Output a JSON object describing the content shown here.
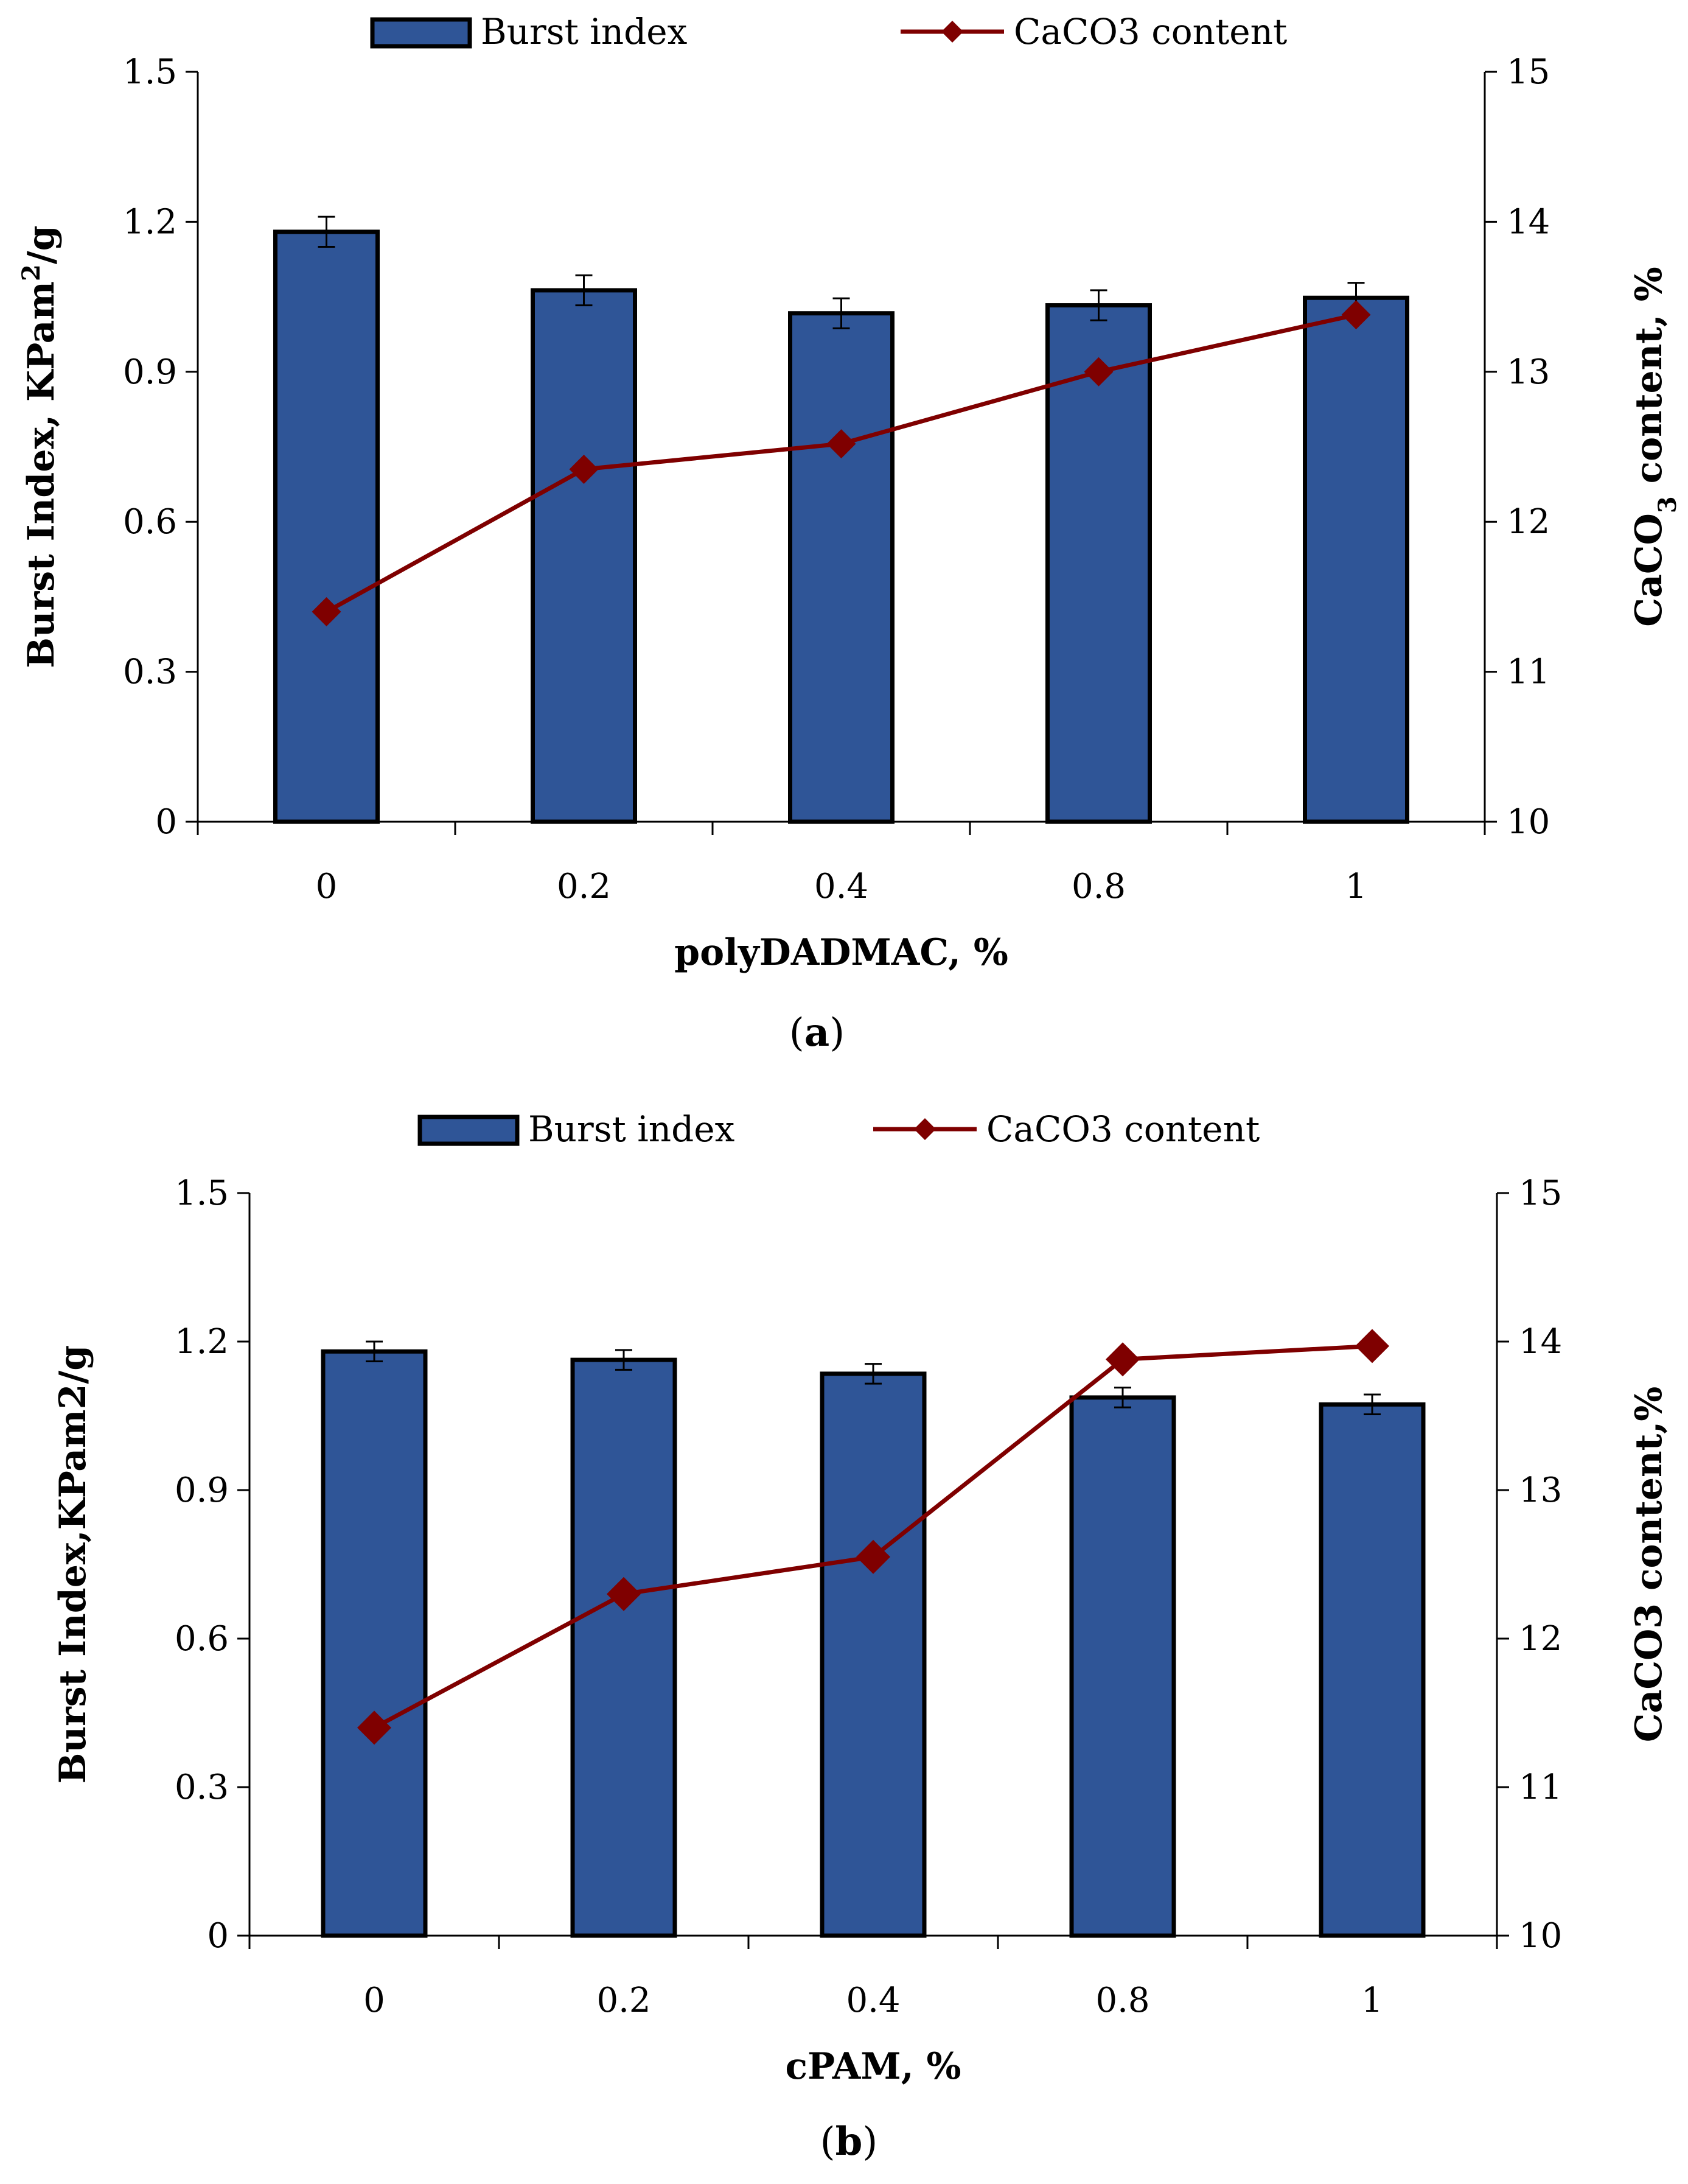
{
  "chart_data": [
    {
      "type": "bar",
      "panel_label": "a",
      "title": "",
      "categories": [
        "0",
        "0.2",
        "0.4",
        "0.8",
        "1"
      ],
      "xlabel": "polyDADMAC, %",
      "ylabel": "Burst Index, KPam²/g",
      "ylabel_parts": {
        "main": "Burst Index, KPam",
        "sup": "2",
        "tail": "/g"
      },
      "y2label": "CaCO₃ content, %",
      "y2label_parts": {
        "main": "CaCO",
        "sub": "3",
        "tail": " content, %"
      },
      "ylim": [
        0,
        1.5
      ],
      "yticks": [
        "0",
        "0.3",
        "0.6",
        "0.9",
        "1.2",
        "1.5"
      ],
      "y2lim": [
        10,
        15
      ],
      "y2ticks": [
        "10",
        "11",
        "12",
        "13",
        "14",
        "15"
      ],
      "grid": false,
      "legend_position": "top",
      "series": [
        {
          "name": "Burst index",
          "type": "bar",
          "axis": "left",
          "color": "#2F5597",
          "values": [
            1.18,
            1.063,
            1.017,
            1.033,
            1.048
          ],
          "errors": [
            0.03,
            0.03,
            0.03,
            0.03,
            0.03
          ]
        },
        {
          "name": "CaCO3 content",
          "type": "line",
          "axis": "right",
          "color": "#7F0000",
          "marker": "diamond",
          "values": [
            11.4,
            12.35,
            12.52,
            13.0,
            13.38
          ]
        }
      ]
    },
    {
      "type": "bar",
      "panel_label": "b",
      "title": "",
      "categories": [
        "0",
        "0.2",
        "0.4",
        "0.8",
        "1"
      ],
      "xlabel": "cPAM, %",
      "ylabel": "Burst Index,KPam2/g",
      "ylabel_parts": {
        "main": "Burst Index,KPam2/g",
        "sup": "",
        "tail": ""
      },
      "y2label": "CaCO3 content,%",
      "y2label_parts": {
        "main": "CaCO3 content,%",
        "sub": "",
        "tail": ""
      },
      "ylim": [
        0,
        1.5
      ],
      "yticks": [
        "0",
        "0.3",
        "0.6",
        "0.9",
        "1.2",
        "1.5"
      ],
      "y2lim": [
        10,
        15
      ],
      "y2ticks": [
        "10",
        "11",
        "12",
        "13",
        "14",
        "15"
      ],
      "grid": false,
      "legend_position": "top",
      "series": [
        {
          "name": "Burst index",
          "type": "bar",
          "axis": "left",
          "color": "#2F5597",
          "values": [
            1.18,
            1.163,
            1.135,
            1.087,
            1.073
          ],
          "errors": [
            0.02,
            0.02,
            0.02,
            0.02,
            0.02
          ]
        },
        {
          "name": "CaCO3 content",
          "type": "line",
          "axis": "right",
          "color": "#7F0000",
          "marker": "diamond",
          "values": [
            11.4,
            12.3,
            12.55,
            13.88,
            13.97
          ]
        }
      ]
    }
  ]
}
